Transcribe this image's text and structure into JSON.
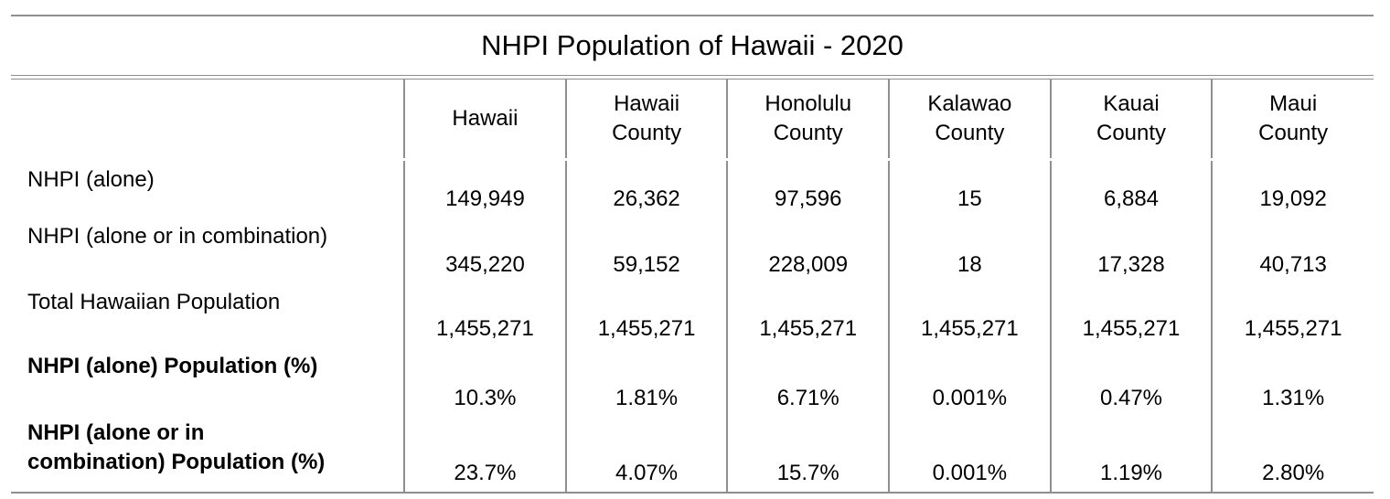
{
  "title": "NHPI Population of Hawaii - 2020",
  "columns": [
    {
      "line1": "Hawaii",
      "line2": ""
    },
    {
      "line1": "Hawaii",
      "line2": "County"
    },
    {
      "line1": "Honolulu",
      "line2": "County"
    },
    {
      "line1": "Kalawao",
      "line2": "County"
    },
    {
      "line1": "Kauai",
      "line2": "County"
    },
    {
      "line1": "Maui",
      "line2": "County"
    }
  ],
  "rows": [
    {
      "label": "NHPI (alone)",
      "label2": "",
      "bold": false,
      "values": [
        "149,949",
        "26,362",
        "97,596",
        "15",
        "6,884",
        "19,092"
      ]
    },
    {
      "label": "NHPI (alone or in combination)",
      "label2": "",
      "bold": false,
      "values": [
        "345,220",
        "59,152",
        "228,009",
        "18",
        "17,328",
        "40,713"
      ]
    },
    {
      "label": "Total Hawaiian Population",
      "label2": "",
      "bold": false,
      "values": [
        "1,455,271",
        "1,455,271",
        "1,455,271",
        "1,455,271",
        "1,455,271",
        "1,455,271"
      ]
    },
    {
      "label": "NHPI (alone) Population (%)",
      "label2": "",
      "bold": true,
      "values": [
        "10.3%",
        "1.81%",
        "6.71%",
        "0.001%",
        "0.47%",
        "1.31%"
      ]
    },
    {
      "label": "NHPI (alone or in",
      "label2": "combination) Population (%)",
      "bold": true,
      "values": [
        "23.7%",
        "4.07%",
        "15.7%",
        "0.001%",
        "1.19%",
        "2.80%"
      ]
    }
  ]
}
